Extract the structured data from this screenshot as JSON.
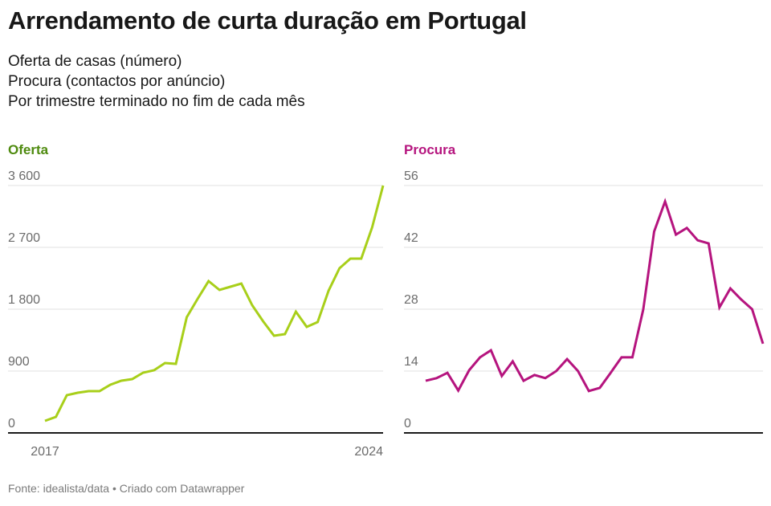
{
  "header": {
    "title": "Arrendamento de curta duração em Portugal",
    "subtitle_lines": [
      "Oferta de casas (número)",
      "Procura (contactos por anúncio)",
      "Por trimestre terminado no fim de cada mês"
    ]
  },
  "footer": {
    "source": "Fonte: idealista/data • Criado com Datawrapper"
  },
  "chart_data": [
    {
      "type": "line",
      "title": "Oferta",
      "title_color": "#4e8a0e",
      "line_color": "#a8cf1a",
      "ylim": [
        0,
        3600
      ],
      "yticks": [
        0,
        900,
        1800,
        2700,
        3600
      ],
      "ytick_labels": [
        "0",
        "900",
        "1 800",
        "2 700",
        "3 600"
      ],
      "xtick_labels": [
        "2017",
        "2024"
      ],
      "grid": true,
      "values": [
        175,
        234,
        549,
        584,
        608,
        608,
        701,
        760,
        783,
        877,
        912,
        1017,
        1005,
        1683,
        1952,
        2209,
        2080,
        2127,
        2174,
        1858,
        1625,
        1414,
        1438,
        1765,
        1543,
        1613,
        2069,
        2396,
        2536,
        2536,
        2992,
        3600
      ]
    },
    {
      "type": "line",
      "title": "Procura",
      "title_color": "#b5147e",
      "line_color": "#b5147e",
      "ylim": [
        0,
        56
      ],
      "yticks": [
        0,
        14,
        28,
        42,
        56
      ],
      "ytick_labels": [
        "0",
        "14",
        "28",
        "42",
        "56"
      ],
      "xtick_labels": [],
      "grid": true,
      "values": [
        11.8,
        12.4,
        13.6,
        9.6,
        14.2,
        17.1,
        18.7,
        12.9,
        16.2,
        11.8,
        13.1,
        12.4,
        14.0,
        16.7,
        14.0,
        9.5,
        10.2,
        13.6,
        17.1,
        17.1,
        28.0,
        45.6,
        52.4,
        44.9,
        46.4,
        43.6,
        42.9,
        28.4,
        32.7,
        30.2,
        28.0,
        20.2
      ]
    }
  ]
}
